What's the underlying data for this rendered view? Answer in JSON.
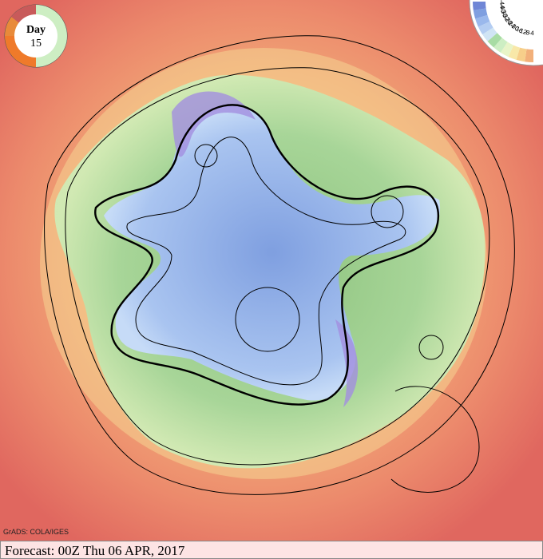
{
  "badge": {
    "label": "Day",
    "day": "15"
  },
  "legend": {
    "labels": [
      "-4",
      "-8",
      "-12",
      "-16",
      "-20",
      "-24",
      "-28",
      "-32",
      "-36",
      "-40",
      "-44"
    ]
  },
  "credit": "GrADS: COLA/IGES",
  "footer": "Forecast: 00Z Thu 06 APR, 2017"
}
